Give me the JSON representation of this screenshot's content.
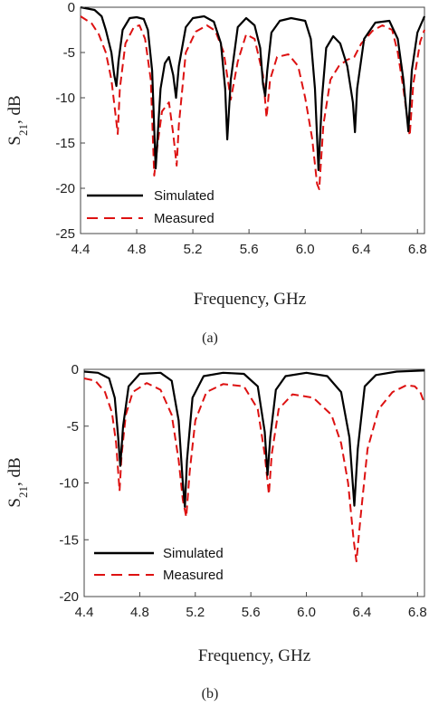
{
  "figure": {
    "captions": [
      "(a)",
      "(b)"
    ]
  },
  "chart_data": [
    {
      "type": "line",
      "caption": "(a)",
      "xlabel": "Frequency, GHz",
      "ylabel_main": "S",
      "ylabel_sub": "21",
      "ylabel_tail": ", dB",
      "xlim": [
        4.4,
        6.85
      ],
      "ylim": [
        -25,
        0
      ],
      "xticks": [
        "4.4",
        "4.8",
        "5.2",
        "5.6",
        "6.0",
        "6.4",
        "6.8"
      ],
      "yticks": [
        "0",
        "-5",
        "-10",
        "-15",
        "-20",
        "-25"
      ],
      "grid": false,
      "legend_position": "bottom-left",
      "series": [
        {
          "name": "Simulated",
          "color": "#000000",
          "dash": "solid",
          "x": [
            4.4,
            4.5,
            4.55,
            4.58,
            4.62,
            4.64,
            4.655,
            4.67,
            4.7,
            4.75,
            4.8,
            4.85,
            4.88,
            4.91,
            4.935,
            4.95,
            4.97,
            5.0,
            5.03,
            5.06,
            5.08,
            5.1,
            5.15,
            5.2,
            5.28,
            5.35,
            5.4,
            5.43,
            5.445,
            5.47,
            5.52,
            5.58,
            5.64,
            5.68,
            5.7,
            5.715,
            5.73,
            5.76,
            5.82,
            5.9,
            6.0,
            6.04,
            6.07,
            6.095,
            6.12,
            6.15,
            6.2,
            6.25,
            6.3,
            6.34,
            6.355,
            6.37,
            6.42,
            6.5,
            6.6,
            6.66,
            6.7,
            6.735,
            6.76,
            6.8,
            6.85
          ],
          "y": [
            0,
            -0.3,
            -1.0,
            -2.5,
            -5.0,
            -7.5,
            -8.7,
            -6.0,
            -2.5,
            -1.2,
            -1.1,
            -1.3,
            -2.5,
            -7.0,
            -17.8,
            -14.0,
            -9.0,
            -6.2,
            -5.5,
            -7.5,
            -10.0,
            -6.5,
            -2.2,
            -1.2,
            -1.0,
            -1.6,
            -4.0,
            -9.0,
            -14.6,
            -8.0,
            -2.2,
            -1.2,
            -2.0,
            -4.5,
            -8.5,
            -9.8,
            -7.0,
            -2.8,
            -1.5,
            -1.2,
            -1.5,
            -3.5,
            -9.0,
            -18.0,
            -10.0,
            -4.5,
            -3.2,
            -4.0,
            -6.5,
            -10.5,
            -13.8,
            -9.0,
            -3.5,
            -1.7,
            -1.5,
            -3.5,
            -8.0,
            -13.7,
            -7.0,
            -2.8,
            -1.0
          ]
        },
        {
          "name": "Measured",
          "color": "#dd1111",
          "dash": "dashed",
          "x": [
            4.4,
            4.48,
            4.53,
            4.58,
            4.62,
            4.65,
            4.665,
            4.68,
            4.72,
            4.78,
            4.82,
            4.86,
            4.9,
            4.925,
            4.95,
            4.98,
            5.03,
            5.06,
            5.085,
            5.1,
            5.15,
            5.22,
            5.3,
            5.36,
            5.42,
            5.47,
            5.52,
            5.58,
            5.64,
            5.7,
            5.725,
            5.75,
            5.8,
            5.88,
            5.95,
            6.0,
            6.05,
            6.085,
            6.1,
            6.13,
            6.18,
            6.24,
            6.3,
            6.35,
            6.4,
            6.43,
            6.48,
            6.55,
            6.62,
            6.66,
            6.7,
            6.745,
            6.77,
            6.82,
            6.85
          ],
          "y": [
            -1.0,
            -1.8,
            -3.0,
            -5.0,
            -8.0,
            -12.0,
            -14.0,
            -9.0,
            -4.0,
            -2.2,
            -2.0,
            -3.5,
            -8.0,
            -18.6,
            -15.0,
            -11.5,
            -10.5,
            -14.0,
            -17.5,
            -13.0,
            -5.0,
            -2.7,
            -2.0,
            -2.6,
            -5.0,
            -10.2,
            -6.0,
            -3.0,
            -3.5,
            -7.5,
            -12.2,
            -8.0,
            -5.5,
            -5.2,
            -6.5,
            -10.0,
            -14.5,
            -19.5,
            -20.1,
            -13.0,
            -8.0,
            -6.5,
            -5.8,
            -5.5,
            -4.0,
            -3.5,
            -2.6,
            -2.0,
            -2.5,
            -5.0,
            -9.0,
            -14.2,
            -8.5,
            -3.8,
            -2.5
          ]
        }
      ]
    },
    {
      "type": "line",
      "caption": "(b)",
      "xlabel": "Frequency, GHz",
      "ylabel_main": "S",
      "ylabel_sub": "21",
      "ylabel_tail": ", dB",
      "xlim": [
        4.4,
        6.85
      ],
      "ylim": [
        -20,
        0
      ],
      "xticks": [
        "4.4",
        "4.8",
        "5.2",
        "5.6",
        "6.0",
        "6.4",
        "6.8"
      ],
      "yticks": [
        "0",
        "-5",
        "-10",
        "-15",
        "-20"
      ],
      "grid": false,
      "legend_position": "bottom-left",
      "series": [
        {
          "name": "Simulated",
          "color": "#000000",
          "dash": "solid",
          "x": [
            4.4,
            4.5,
            4.58,
            4.62,
            4.645,
            4.66,
            4.68,
            4.72,
            4.8,
            4.95,
            5.03,
            5.08,
            5.11,
            5.125,
            5.14,
            5.18,
            5.26,
            5.4,
            5.55,
            5.65,
            5.7,
            5.72,
            5.74,
            5.78,
            5.85,
            6.0,
            6.15,
            6.25,
            6.31,
            6.345,
            6.37,
            6.42,
            6.5,
            6.65,
            6.85
          ],
          "y": [
            -0.2,
            -0.3,
            -0.8,
            -2.5,
            -6.0,
            -8.5,
            -5.0,
            -1.5,
            -0.4,
            -0.3,
            -1.0,
            -4.5,
            -10.0,
            -12.1,
            -8.0,
            -2.5,
            -0.6,
            -0.3,
            -0.4,
            -1.5,
            -5.5,
            -9.3,
            -6.0,
            -1.8,
            -0.6,
            -0.3,
            -0.6,
            -2.0,
            -6.0,
            -12.0,
            -7.0,
            -1.5,
            -0.5,
            -0.2,
            -0.1
          ]
        },
        {
          "name": "Measured",
          "color": "#dd1111",
          "dash": "dashed",
          "x": [
            4.4,
            4.48,
            4.55,
            4.6,
            4.63,
            4.655,
            4.67,
            4.7,
            4.75,
            4.85,
            4.95,
            5.03,
            5.08,
            5.11,
            5.135,
            5.16,
            5.2,
            5.28,
            5.4,
            5.55,
            5.65,
            5.7,
            5.73,
            5.75,
            5.8,
            5.9,
            6.05,
            6.18,
            6.25,
            6.3,
            6.34,
            6.36,
            6.39,
            6.44,
            6.52,
            6.62,
            6.72,
            6.78,
            6.82,
            6.85
          ],
          "y": [
            -0.8,
            -1.0,
            -2.0,
            -3.8,
            -6.5,
            -10.7,
            -7.5,
            -4.0,
            -2.0,
            -1.2,
            -1.8,
            -4.0,
            -8.0,
            -11.5,
            -13.0,
            -9.0,
            -4.5,
            -2.0,
            -1.3,
            -1.5,
            -3.5,
            -7.5,
            -11.0,
            -7.5,
            -3.5,
            -2.2,
            -2.5,
            -4.0,
            -6.5,
            -10.0,
            -15.0,
            -16.9,
            -13.0,
            -7.0,
            -3.5,
            -2.0,
            -1.4,
            -1.5,
            -2.0,
            -3.0
          ]
        }
      ]
    }
  ]
}
